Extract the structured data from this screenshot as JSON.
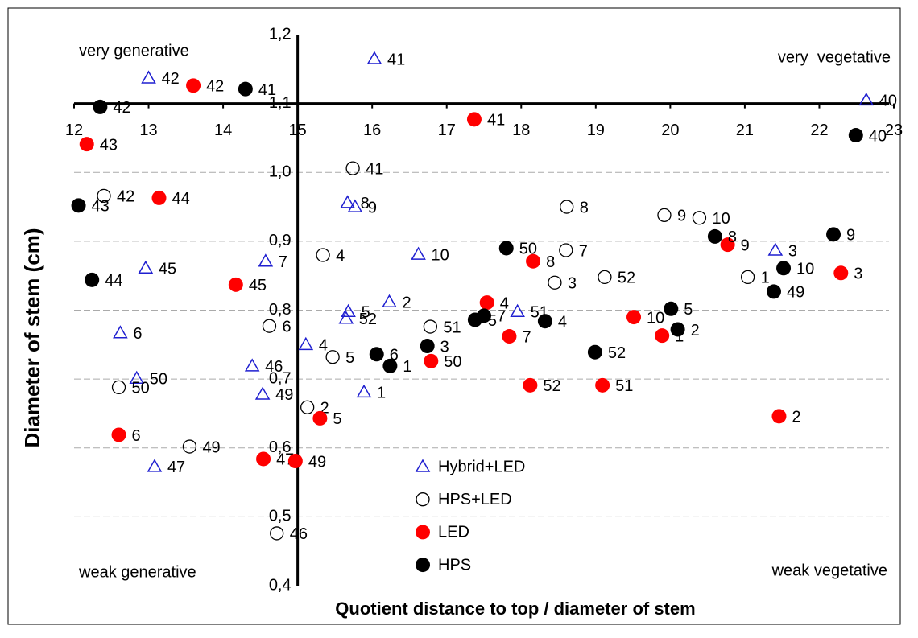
{
  "chart_data": {
    "type": "scatter",
    "xlabel": "Quotient distance to top / diameter of stem",
    "ylabel": "Diameter of stem (cm)",
    "xlim": [
      12,
      23
    ],
    "ylim": [
      0.4,
      1.2
    ],
    "xticks": [
      12,
      13,
      14,
      15,
      16,
      17,
      18,
      19,
      20,
      21,
      22,
      23
    ],
    "yticks": [
      {
        "value": 0.4,
        "label": "0,4"
      },
      {
        "value": 0.5,
        "label": "0,5"
      },
      {
        "value": 0.6,
        "label": "0,6"
      },
      {
        "value": 0.7,
        "label": "0,7"
      },
      {
        "value": 0.8,
        "label": "0,8"
      },
      {
        "value": 0.9,
        "label": "0,9"
      },
      {
        "value": 1.0,
        "label": "1,0"
      },
      {
        "value": 1.1,
        "label": "1,1"
      },
      {
        "value": 1.2,
        "label": "1,2"
      }
    ],
    "x_axis_at": 1.1,
    "y_axis_at": 15,
    "grid": true,
    "annotations": [
      {
        "text": "very generative",
        "corner": "top-left"
      },
      {
        "text": "very  vegetative",
        "corner": "top-right"
      },
      {
        "text": "weak generative",
        "corner": "bottom-left"
      },
      {
        "text": "weak vegetative",
        "corner": "bottom-right"
      }
    ],
    "series": [
      {
        "name": "Hybrid+LED",
        "color": "#1f1fd0",
        "marker": "triangle",
        "filled": false,
        "x": [
          16.03,
          13.0,
          22.63,
          15.67,
          15.77,
          12.96,
          14.57,
          16.62,
          21.41,
          16.23,
          15.68,
          15.65,
          17.95,
          12.62,
          15.11,
          14.39,
          12.84,
          14.53,
          15.89,
          13.08
        ],
        "values": [
          1.165,
          1.137,
          1.105,
          0.956,
          0.95,
          0.861,
          0.871,
          0.881,
          0.887,
          0.812,
          0.798,
          0.788,
          0.798,
          0.767,
          0.75,
          0.719,
          0.701,
          0.678,
          0.681,
          0.573
        ],
        "labels": [
          "41",
          "42",
          "40",
          "8",
          "9",
          "45",
          "7",
          "10",
          "3",
          "2",
          "5",
          "52",
          "51",
          "6",
          "4",
          "46",
          "50",
          "49",
          "1",
          "47"
        ]
      },
      {
        "name": "HPS+LED",
        "color": "#000000",
        "marker": "circle",
        "filled": false,
        "x": [
          15.74,
          12.4,
          18.61,
          19.92,
          20.39,
          15.34,
          18.6,
          18.45,
          19.12,
          21.04,
          14.62,
          16.78,
          15.47,
          12.6,
          15.13,
          13.55,
          14.72
        ],
        "values": [
          1.006,
          0.966,
          0.95,
          0.938,
          0.934,
          0.88,
          0.887,
          0.84,
          0.848,
          0.848,
          0.777,
          0.776,
          0.732,
          0.688,
          0.659,
          0.602,
          0.476
        ],
        "labels": [
          "41",
          "42",
          "8",
          "9",
          "10",
          "4",
          "7",
          "3",
          "52",
          "1",
          "6",
          "51",
          "5",
          "50",
          "2",
          "49",
          "46"
        ]
      },
      {
        "name": "LED",
        "color": "#ff0000",
        "marker": "circle",
        "filled": true,
        "x": [
          13.6,
          17.37,
          12.17,
          13.14,
          14.17,
          18.16,
          20.77,
          22.29,
          17.54,
          19.51,
          19.89,
          17.84,
          16.79,
          18.12,
          19.09,
          12.6,
          15.3,
          21.46,
          14.54,
          14.97
        ],
        "values": [
          1.126,
          1.077,
          1.041,
          0.963,
          0.837,
          0.871,
          0.895,
          0.854,
          0.811,
          0.79,
          0.763,
          0.762,
          0.726,
          0.691,
          0.691,
          0.619,
          0.643,
          0.646,
          0.584,
          0.581
        ],
        "labels": [
          "42",
          "41",
          "43",
          "44",
          "45",
          "8",
          "9",
          "3",
          "4",
          "10",
          "1",
          "7",
          "50",
          "52",
          "51",
          "6",
          "5",
          "2",
          "47",
          "49"
        ]
      },
      {
        "name": "HPS",
        "color": "#000000",
        "marker": "circle",
        "filled": true,
        "x": [
          12.35,
          14.3,
          22.49,
          12.06,
          12.24,
          17.8,
          20.6,
          22.19,
          21.52,
          21.39,
          20.01,
          20.1,
          17.5,
          17.38,
          18.32,
          16.74,
          16.06,
          16.24,
          18.99
        ],
        "values": [
          1.095,
          1.121,
          1.054,
          0.952,
          0.844,
          0.89,
          0.907,
          0.91,
          0.861,
          0.827,
          0.802,
          0.772,
          0.792,
          0.786,
          0.784,
          0.748,
          0.736,
          0.719,
          0.739
        ],
        "labels": [
          "42",
          "41",
          "40",
          "43",
          "44",
          "50",
          "8",
          "9",
          "10",
          "49",
          "5",
          "2",
          "7",
          "5",
          "4",
          "3",
          "6",
          "1",
          "52"
        ]
      }
    ]
  }
}
